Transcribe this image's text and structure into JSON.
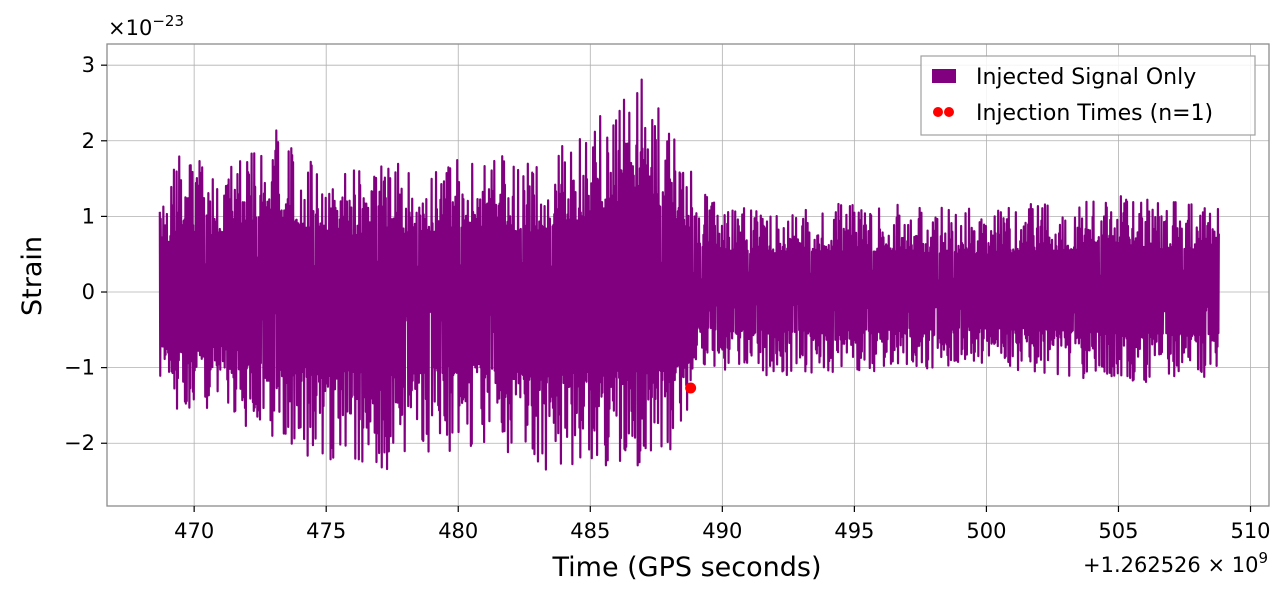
{
  "chart_data": {
    "type": "line",
    "title": "",
    "xlabel": "Time (GPS seconds)",
    "ylabel": "Strain",
    "x_offset_label": "+1.262526 × 10",
    "x_offset_exponent": "9",
    "y_scale_label": "×10",
    "y_scale_exponent": "−23",
    "xlim": [
      466.7,
      510.7
    ],
    "ylim": [
      -2.83,
      3.28
    ],
    "x_ticks": [
      470,
      475,
      480,
      485,
      490,
      495,
      500,
      505,
      510
    ],
    "x_tick_labels": [
      "470",
      "475",
      "480",
      "485",
      "490",
      "495",
      "500",
      "505",
      "510"
    ],
    "y_ticks": [
      -2,
      -1,
      0,
      1,
      2,
      3
    ],
    "y_tick_labels": [
      "−2",
      "−1",
      "0",
      "1",
      "2",
      "3"
    ],
    "grid": true,
    "legend_position": "top-right",
    "series": [
      {
        "name": "Injected Signal Only",
        "color": "#800080",
        "x_range": [
          468.7,
          508.8
        ],
        "envelope": {
          "x": [
            468.7,
            469.5,
            471,
            473,
            475,
            477,
            479,
            481,
            483,
            485,
            487,
            488.8,
            489,
            490,
            495,
            500,
            505,
            508.8
          ],
          "upper": [
            1.2,
            1.85,
            1.6,
            2.3,
            1.5,
            1.8,
            1.6,
            1.9,
            1.7,
            2.2,
            2.9,
            1.8,
            1.4,
            1.1,
            1.2,
            1.1,
            1.3,
            1.2
          ],
          "lower": [
            -1.1,
            -1.75,
            -1.5,
            -2.1,
            -2.2,
            -2.4,
            -2.2,
            -2.1,
            -2.5,
            -2.3,
            -2.3,
            -2.0,
            -1.0,
            -1.1,
            -1.1,
            -1.0,
            -1.2,
            -1.2
          ]
        }
      },
      {
        "name": "Injection Times (n=1)",
        "color": "#ff0000",
        "points": [
          {
            "x": 488.8,
            "y": -1.27
          }
        ]
      }
    ]
  }
}
